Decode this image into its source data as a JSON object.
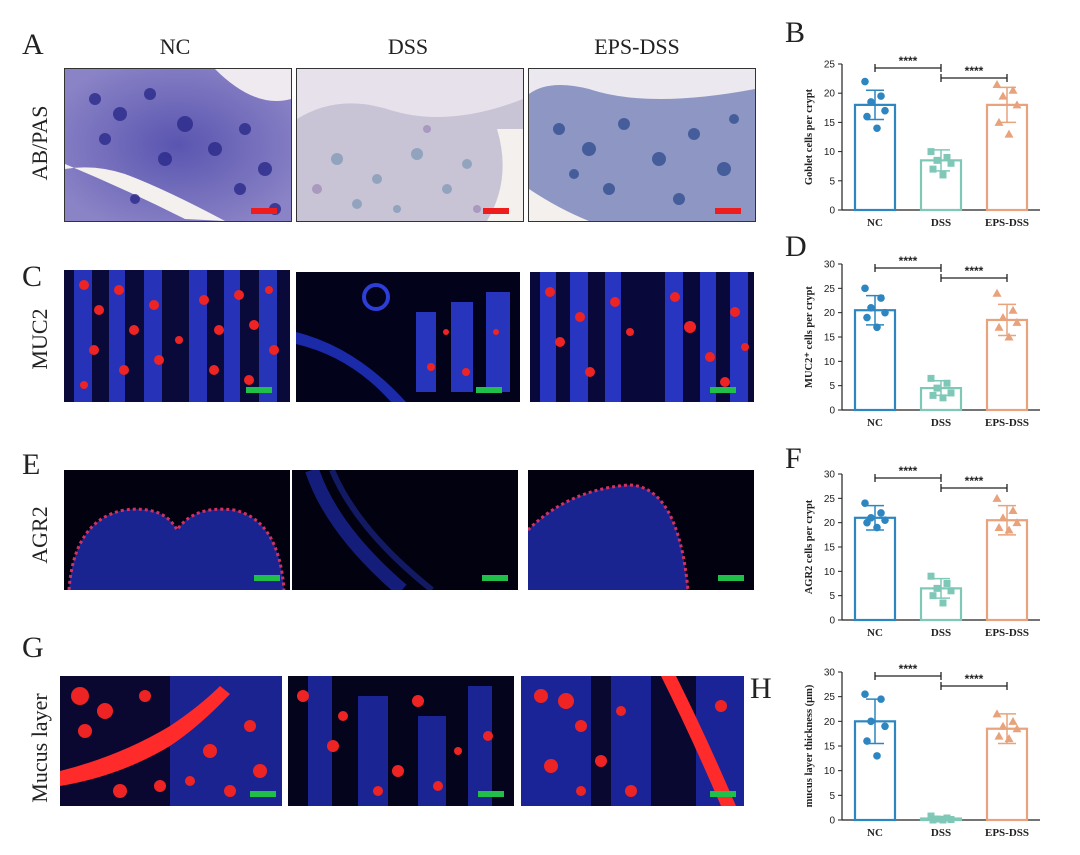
{
  "figure": {
    "groups": [
      "NC",
      "DSS",
      "EPS-DSS"
    ],
    "rows": [
      {
        "panel": "A",
        "label": "AB/PAS",
        "scalebar_color": "#ee1c1c"
      },
      {
        "panel": "C",
        "label": "MUC2",
        "scalebar_color": "#1fbf4a"
      },
      {
        "panel": "E",
        "label": "AGR2",
        "scalebar_color": "#1fbf4a"
      },
      {
        "panel": "G",
        "label": "Mucus layer",
        "scalebar_color": "#1fbf4a"
      }
    ]
  },
  "colors": {
    "NC": "#2e86c1",
    "DSS": "#7fc8b8",
    "EPS-DSS": "#e8a27c"
  },
  "chart_data": [
    {
      "panel": "B",
      "type": "bar",
      "ylabel": "Goblet cells per crypt",
      "categories": [
        "NC",
        "DSS",
        "EPS-DSS"
      ],
      "means": [
        18,
        8.5,
        18
      ],
      "errors": [
        2.5,
        1.8,
        3
      ],
      "ylim": [
        0,
        25
      ],
      "yticks": [
        0,
        5,
        10,
        15,
        20,
        25
      ],
      "points": [
        [
          22,
          19.5,
          18.5,
          17,
          16,
          14
        ],
        [
          10,
          9,
          8.5,
          8,
          7,
          6
        ],
        [
          21.5,
          20.5,
          19.5,
          18,
          15,
          13
        ]
      ],
      "sig": [
        "****",
        "****"
      ]
    },
    {
      "panel": "D",
      "type": "bar",
      "ylabel": "MUC2⁺ cells per crypt",
      "categories": [
        "NC",
        "DSS",
        "EPS-DSS"
      ],
      "means": [
        20.5,
        4.5,
        18.5
      ],
      "errors": [
        3,
        1.5,
        3.2
      ],
      "ylim": [
        0,
        30
      ],
      "yticks": [
        0,
        5,
        10,
        15,
        20,
        25,
        30
      ],
      "points": [
        [
          25,
          23,
          21,
          20,
          19,
          17
        ],
        [
          6.5,
          5.5,
          4.5,
          3.5,
          3,
          2.5
        ],
        [
          24,
          20.5,
          19,
          18,
          17,
          15
        ]
      ],
      "sig": [
        "****",
        "****"
      ]
    },
    {
      "panel": "F",
      "type": "bar",
      "ylabel": "AGR2 cells per crypt",
      "categories": [
        "NC",
        "DSS",
        "EPS-DSS"
      ],
      "means": [
        21,
        6.5,
        20.5
      ],
      "errors": [
        2.5,
        2,
        3
      ],
      "ylim": [
        0,
        30
      ],
      "yticks": [
        0,
        5,
        10,
        15,
        20,
        25,
        30
      ],
      "points": [
        [
          24,
          22,
          21,
          20.5,
          20,
          19
        ],
        [
          9,
          7.5,
          6.5,
          6,
          5,
          3.5
        ],
        [
          25,
          22.5,
          21,
          20,
          19,
          18.5
        ]
      ],
      "sig": [
        "****",
        "****"
      ]
    },
    {
      "panel": "H",
      "type": "bar",
      "ylabel": "mucus layer thickness (μm)",
      "categories": [
        "NC",
        "DSS",
        "EPS-DSS"
      ],
      "means": [
        20,
        0.3,
        18.5
      ],
      "errors": [
        4.5,
        0.4,
        3
      ],
      "ylim": [
        0,
        30
      ],
      "yticks": [
        0,
        5,
        10,
        15,
        20,
        25,
        30
      ],
      "points": [
        [
          25.5,
          24.5,
          20,
          19,
          16,
          13
        ],
        [
          0.8,
          0.4,
          0.2,
          0.1,
          0,
          0
        ],
        [
          21.5,
          20,
          19,
          18.5,
          17,
          16.5
        ]
      ],
      "sig": [
        "****",
        "****"
      ]
    }
  ]
}
